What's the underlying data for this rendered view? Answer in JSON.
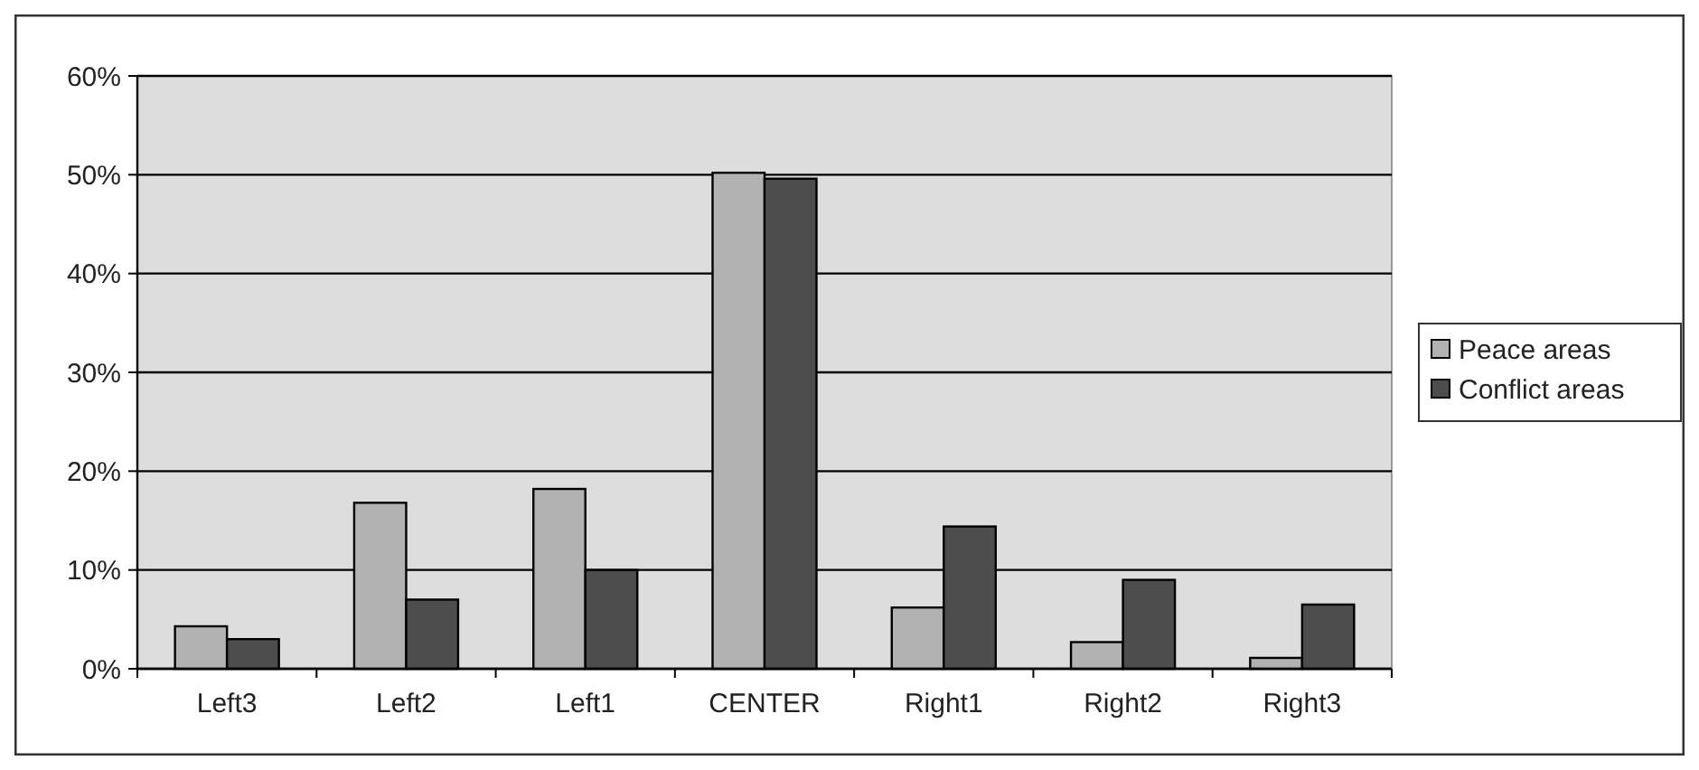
{
  "chart_data": {
    "type": "bar",
    "categories": [
      "Left3",
      "Left2",
      "Left1",
      "CENTER",
      "Right1",
      "Right2",
      "Right3"
    ],
    "series": [
      {
        "name": "Peace areas",
        "color": "#b2b2b2",
        "values": [
          4.3,
          16.8,
          18.2,
          50.2,
          6.2,
          2.7,
          1.1
        ]
      },
      {
        "name": "Conflict areas",
        "color": "#4d4d4d",
        "values": [
          3.0,
          7.0,
          10.0,
          49.6,
          14.4,
          9.0,
          6.5
        ]
      }
    ],
    "ylim": [
      0,
      60
    ],
    "yticks": [
      {
        "value": 0,
        "label": "0%"
      },
      {
        "value": 10,
        "label": "10%"
      },
      {
        "value": 20,
        "label": "20%"
      },
      {
        "value": 30,
        "label": "30%"
      },
      {
        "value": 40,
        "label": "40%"
      },
      {
        "value": 50,
        "label": "50%"
      },
      {
        "value": 60,
        "label": "60%"
      }
    ],
    "grid": "y",
    "legend": "right"
  }
}
